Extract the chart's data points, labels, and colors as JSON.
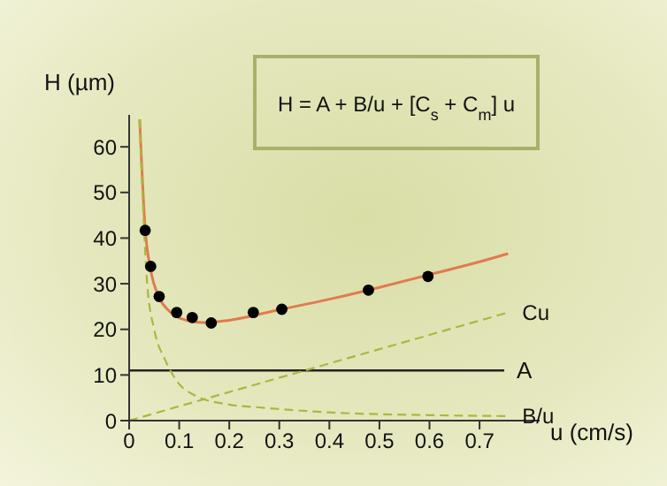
{
  "chart_data": {
    "type": "line",
    "xlabel": "u (cm/s)",
    "ylabel": "H (µm)",
    "xlim": [
      0,
      0.82
    ],
    "ylim": [
      0,
      67
    ],
    "xticks": [
      0,
      0.1,
      0.2,
      0.3,
      0.4,
      0.5,
      0.6,
      0.7
    ],
    "yticks": [
      0,
      10,
      20,
      30,
      40,
      50,
      60
    ],
    "grid": false,
    "legend": false,
    "annotations": [
      "H = A + B/u + [C$_{s}$ + C$_{m}$] u"
    ],
    "ref_lines": [
      {
        "axis": "y",
        "value": 11,
        "label": "A",
        "color": "#222222"
      }
    ],
    "series": [
      {
        "color": "#e07b50",
        "line_style": "solid",
        "x": [
          0.021,
          0.032,
          0.043,
          0.06,
          0.08,
          0.1,
          0.15,
          0.2,
          0.3,
          0.4,
          0.5,
          0.6,
          0.7,
          0.757
        ],
        "values": [
          66,
          42,
          33,
          27,
          24,
          22.5,
          21.5,
          22,
          24.3,
          26.6,
          29.2,
          32,
          34.8,
          36.6
        ]
      },
      {
        "type": "scatter",
        "color": "#000000",
        "marker": "circle",
        "x": [
          0.032,
          0.043,
          0.06,
          0.095,
          0.126,
          0.164,
          0.248,
          0.305,
          0.478,
          0.597
        ],
        "values": [
          41.7,
          33.8,
          27.2,
          23.7,
          22.6,
          21.4,
          23.7,
          24.4,
          28.6,
          31.6
        ]
      },
      {
        "name": "Cu",
        "color": "#a8b840",
        "line_style": "dashed",
        "x": [
          0,
          0.757
        ],
        "values": [
          0,
          23.7
        ]
      },
      {
        "name": "B/u",
        "color": "#a8b840",
        "line_style": "dashed",
        "x": [
          0.021,
          0.036,
          0.05,
          0.072,
          0.1,
          0.13,
          0.2,
          0.26,
          0.4,
          0.6,
          0.757
        ],
        "values": [
          66,
          30,
          20,
          13.3,
          8,
          5.6,
          3.5,
          2.9,
          1.8,
          1.2,
          1
        ]
      }
    ]
  }
}
